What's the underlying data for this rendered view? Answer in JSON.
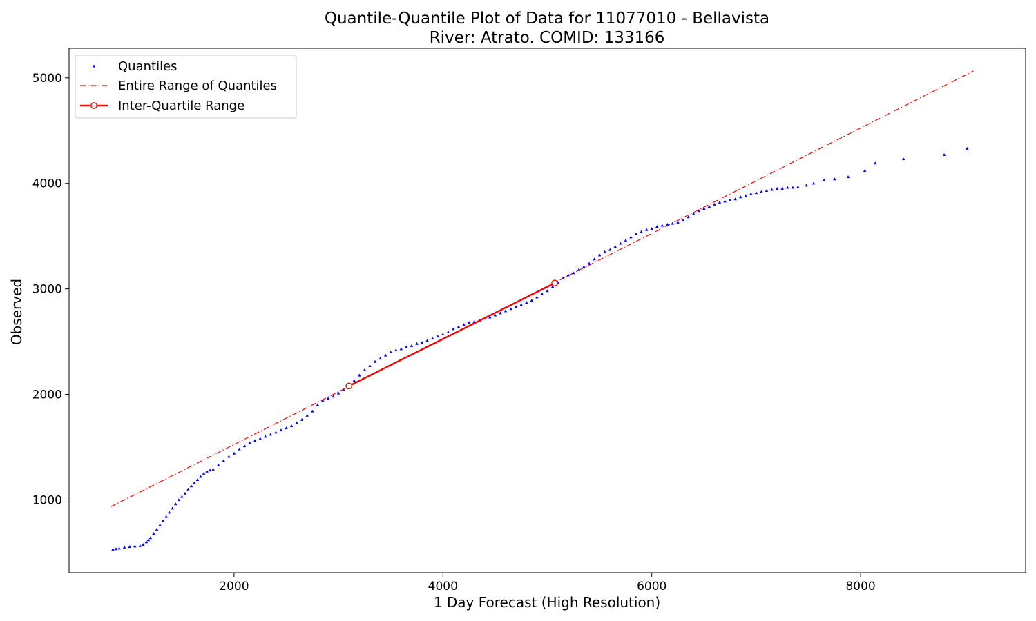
{
  "chart_data": {
    "type": "scatter",
    "title": [
      "Quantile-Quantile Plot of Data for 11077010 - Bellavista",
      "River: Atrato. COMID: 133166"
    ],
    "xlabel": "1 Day Forecast (High Resolution)",
    "ylabel": "Observed",
    "xlim": [
      420,
      9580
    ],
    "ylim": [
      310,
      5280
    ],
    "xticks": [
      2000,
      4000,
      6000,
      8000
    ],
    "yticks": [
      1000,
      2000,
      3000,
      4000,
      5000
    ],
    "grid": false,
    "legend_position": "upper-left",
    "colors": {
      "quantiles": "#0000ff",
      "lines": "#ff0000"
    },
    "series": [
      {
        "name": "Quantiles",
        "style": "markers",
        "x": [
          840,
          870,
          900,
          950,
          1000,
          1050,
          1100,
          1130,
          1160,
          1180,
          1200,
          1230,
          1260,
          1290,
          1320,
          1350,
          1380,
          1410,
          1440,
          1470,
          1500,
          1530,
          1560,
          1590,
          1620,
          1650,
          1680,
          1710,
          1740,
          1770,
          1800,
          1850,
          1900,
          1950,
          2000,
          2050,
          2100,
          2150,
          2200,
          2250,
          2300,
          2350,
          2400,
          2450,
          2500,
          2550,
          2600,
          2650,
          2700,
          2750,
          2800,
          2850,
          2900,
          2950,
          3000,
          3050,
          3100,
          3150,
          3200,
          3250,
          3300,
          3350,
          3400,
          3450,
          3500,
          3550,
          3600,
          3650,
          3700,
          3750,
          3800,
          3850,
          3900,
          3950,
          4000,
          4050,
          4100,
          4150,
          4200,
          4250,
          4300,
          4350,
          4400,
          4450,
          4500,
          4550,
          4600,
          4650,
          4700,
          4750,
          4800,
          4850,
          4900,
          4950,
          5000,
          5050,
          5100,
          5150,
          5200,
          5250,
          5300,
          5350,
          5400,
          5450,
          5500,
          5550,
          5600,
          5650,
          5700,
          5750,
          5800,
          5850,
          5900,
          5950,
          6000,
          6050,
          6100,
          6150,
          6200,
          6250,
          6300,
          6350,
          6400,
          6450,
          6500,
          6550,
          6600,
          6650,
          6700,
          6750,
          6800,
          6850,
          6900,
          6950,
          7000,
          7050,
          7100,
          7150,
          7200,
          7250,
          7300,
          7350,
          7400,
          7480,
          7550,
          7650,
          7750,
          7880,
          8040,
          8140,
          8410,
          8800,
          9020
        ],
        "y": [
          530,
          535,
          540,
          550,
          555,
          560,
          565,
          575,
          600,
          620,
          640,
          680,
          720,
          760,
          800,
          840,
          880,
          920,
          960,
          1000,
          1030,
          1060,
          1100,
          1130,
          1160,
          1190,
          1220,
          1250,
          1270,
          1280,
          1290,
          1330,
          1370,
          1410,
          1440,
          1480,
          1510,
          1540,
          1560,
          1580,
          1600,
          1620,
          1640,
          1660,
          1680,
          1700,
          1730,
          1760,
          1800,
          1840,
          1900,
          1940,
          1960,
          1980,
          2010,
          2040,
          2080,
          2130,
          2180,
          2230,
          2270,
          2310,
          2340,
          2370,
          2400,
          2420,
          2430,
          2450,
          2460,
          2480,
          2490,
          2510,
          2530,
          2550,
          2570,
          2590,
          2620,
          2640,
          2660,
          2680,
          2690,
          2700,
          2720,
          2730,
          2750,
          2770,
          2790,
          2810,
          2830,
          2850,
          2870,
          2890,
          2920,
          2950,
          2980,
          3020,
          3060,
          3100,
          3130,
          3150,
          3180,
          3210,
          3240,
          3280,
          3320,
          3350,
          3370,
          3400,
          3430,
          3460,
          3490,
          3520,
          3540,
          3560,
          3570,
          3590,
          3600,
          3610,
          3620,
          3630,
          3650,
          3680,
          3710,
          3740,
          3760,
          3780,
          3800,
          3820,
          3830,
          3840,
          3850,
          3870,
          3880,
          3900,
          3910,
          3920,
          3930,
          3940,
          3950,
          3950,
          3960,
          3960,
          3965,
          3980,
          4000,
          4030,
          4040,
          4060,
          4120,
          4190,
          4230,
          4270,
          4330
        ]
      },
      {
        "name": "Entire Range of Quantiles",
        "style": "dashdot",
        "x": [
          820,
          9080
        ],
        "y": [
          935,
          5065
        ]
      },
      {
        "name": "Inter-Quartile Range",
        "style": "line-markers",
        "x": [
          3100,
          5070
        ],
        "y": [
          2080,
          3055
        ]
      }
    ]
  }
}
